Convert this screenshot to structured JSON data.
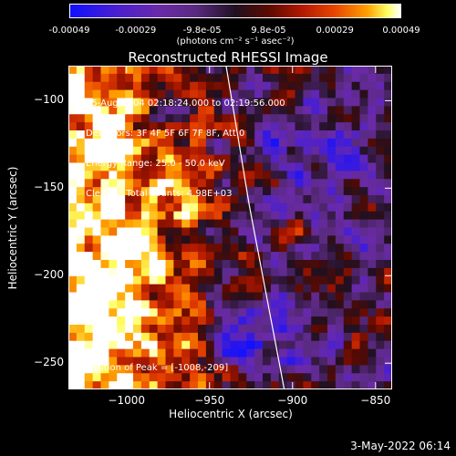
{
  "colorbar": {
    "ticks": [
      "-0.00049",
      "-0.00029",
      "-9.8e-05",
      "9.8e-05",
      "0.00029",
      "0.00049"
    ],
    "units": "(photons cm⁻² s⁻¹ asec⁻²)"
  },
  "chart_data": {
    "type": "heatmap",
    "title": "Reconstructed RHESSI Image",
    "xlabel": "Heliocentric X (arcsec)",
    "ylabel": "Heliocentric Y (arcsec)",
    "xlim": [
      -1035,
      -840
    ],
    "ylim": [
      -265,
      -80
    ],
    "x_ticks": [
      "−1000",
      "−950",
      "−900",
      "−850"
    ],
    "x_tick_values": [
      -1000,
      -950,
      -900,
      -850
    ],
    "y_ticks": [
      "−100",
      "−150",
      "−200",
      "−250"
    ],
    "y_tick_values": [
      -100,
      -150,
      -200,
      -250
    ],
    "color_range": [
      -0.00049,
      0.00049
    ],
    "limb_points": [
      [
        -940,
        -80
      ],
      [
        -933,
        -120
      ],
      [
        -926,
        -160
      ],
      [
        -918,
        -200
      ],
      [
        -910,
        -240
      ],
      [
        -905,
        -265
      ]
    ],
    "peak": [
      -1008,
      -209
    ]
  },
  "info_lines": [
    "25-Aug-2004 02:18:24.000 to 02:19:56.000",
    "Detectors: 3F 4F 5F 6F 7F 8F, Att 0",
    "Energy Range: 25.0 - 50.0 keV",
    "Clean     Total counts: 4.98E+03"
  ],
  "peak_label": "Position of Peak = [-1008,-209]",
  "datestamp": "3-May-2022 06:14"
}
